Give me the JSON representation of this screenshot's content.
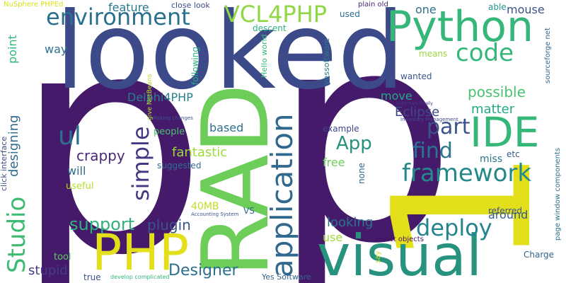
{
  "words": [
    {
      "text": "p",
      "color": "#451a6b"
    },
    {
      "text": "p",
      "color": "#451a6b"
    },
    {
      "text": "looked",
      "color": "#3c4a8a"
    },
    {
      "text": "1",
      "color": "#e3e01b"
    },
    {
      "text": "RAD",
      "color": "#6ccd59"
    },
    {
      "text": "visual",
      "color": "#27927e"
    },
    {
      "text": "Python",
      "color": "#35b779"
    },
    {
      "text": "PHP",
      "color": "#e3e01b"
    },
    {
      "text": "IDE",
      "color": "#35b779"
    },
    {
      "text": "environment",
      "color": "#2a6f8d"
    },
    {
      "text": "VCL4PHP",
      "color": "#8fd744"
    },
    {
      "text": "code",
      "color": "#35b779"
    },
    {
      "text": "framework",
      "color": "#25898c"
    },
    {
      "text": "application",
      "color": "#31688e"
    },
    {
      "text": "deploy",
      "color": "#25848e"
    },
    {
      "text": "Studio",
      "color": "#3ebb72"
    },
    {
      "text": "p",
      "color": "#451a6b"
    },
    {
      "text": "part",
      "color": "#3b528b"
    },
    {
      "text": "find",
      "color": "#2b758e"
    },
    {
      "text": "simple",
      "color": "#453781"
    },
    {
      "text": "ul",
      "color": "#2d708e"
    },
    {
      "text": "App",
      "color": "#27927e"
    },
    {
      "text": "Designer",
      "color": "#2d708e"
    },
    {
      "text": "support",
      "color": "#2db27d"
    },
    {
      "text": "plugin",
      "color": "#3b528b"
    },
    {
      "text": "possible",
      "color": "#4ac16d"
    },
    {
      "text": "matter",
      "color": "#22a884"
    },
    {
      "text": "Eclipse",
      "color": "#3e4989"
    },
    {
      "text": "crappy",
      "color": "#482878"
    },
    {
      "text": "fantastic",
      "color": "#9fda3a"
    },
    {
      "text": "looking",
      "color": "#2c738e"
    },
    {
      "text": "designing",
      "color": "#2f6c8e"
    },
    {
      "text": "stupid",
      "color": "#433d84"
    },
    {
      "text": "feature",
      "color": "#29798e"
    },
    {
      "text": "Delphi4PHP",
      "color": "#277f8e"
    },
    {
      "text": "one",
      "color": "#2c738e"
    },
    {
      "text": "way",
      "color": "#2c728e"
    },
    {
      "text": "point",
      "color": "#32b67a"
    },
    {
      "text": "mouse",
      "color": "#3b528b"
    },
    {
      "text": "based",
      "color": "#2c738e"
    },
    {
      "text": "will",
      "color": "#2f6b8e"
    },
    {
      "text": "free",
      "color": "#6ccd59"
    },
    {
      "text": "move",
      "color": "#23a983"
    },
    {
      "text": "miss",
      "color": "#2a788e"
    },
    {
      "text": "around",
      "color": "#365c8d"
    },
    {
      "text": "40MB",
      "color": "#c0df25"
    },
    {
      "text": "people",
      "color": "#4ac16d"
    },
    {
      "text": "suggested",
      "color": "#2f6c8e"
    },
    {
      "text": "useful",
      "color": "#b5de2b"
    },
    {
      "text": "tool",
      "color": "#5ec962"
    },
    {
      "text": "use",
      "color": "#a0da39"
    },
    {
      "text": "VS",
      "color": "#30698e"
    },
    {
      "text": "true",
      "color": "#3b528b"
    },
    {
      "text": "wanted",
      "color": "#39568c"
    },
    {
      "text": "able",
      "color": "#20938c"
    },
    {
      "text": "etc",
      "color": "#375b8d"
    },
    {
      "text": "none",
      "color": "#31688e"
    },
    {
      "text": "example",
      "color": "#3f4889"
    },
    {
      "text": "referred",
      "color": "#3a548c"
    },
    {
      "text": "Charge",
      "color": "#33638d"
    },
    {
      "text": "used",
      "color": "#2e6e8e"
    },
    {
      "text": "means",
      "color": "#9bd93c"
    },
    {
      "text": "descent",
      "color": "#2eb37c"
    },
    {
      "text": "following",
      "color": "#26ad81"
    },
    {
      "text": "close look",
      "color": "#3e4a89"
    },
    {
      "text": "Hello world",
      "color": "#3aba76"
    },
    {
      "text": "yessoftware",
      "color": "#2a768e"
    },
    {
      "text": "plain old",
      "color": "#482475"
    },
    {
      "text": "NuSphere PHPEd",
      "color": "#d8e219"
    },
    {
      "text": "click interface",
      "color": "#3e4c8a"
    },
    {
      "text": "give NetBeans",
      "color": "#bddf26"
    },
    {
      "text": "sourceforge net",
      "color": "#32658e"
    },
    {
      "text": "page window components",
      "color": "#2c738e"
    },
    {
      "text": "select objects",
      "color": "#471365"
    },
    {
      "text": "say",
      "color": "#cae11f"
    },
    {
      "text": "Yes Software",
      "color": "#32648e"
    },
    {
      "text": "develop complicated",
      "color": "#35b779"
    },
    {
      "text": "Accounting System",
      "color": "#3a548c"
    },
    {
      "text": "Inventory Management",
      "color": "#3e4c8a"
    },
    {
      "text": "nightmare Finally",
      "color": "#443a83"
    },
    {
      "text": "Making changes",
      "color": "#3b528b"
    }
  ]
}
